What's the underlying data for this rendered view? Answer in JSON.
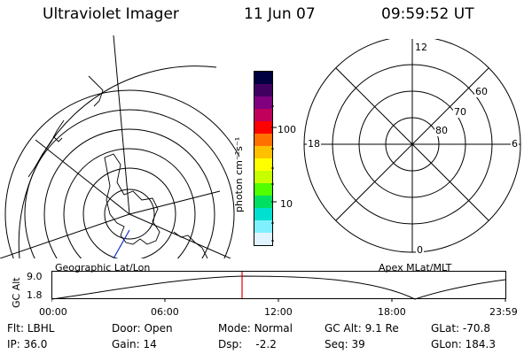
{
  "header": {
    "title": "Ultraviolet Imager",
    "date": "11 Jun 07",
    "time": "09:59:52 UT"
  },
  "left_map": {
    "label": "Geographic Lat/Lon"
  },
  "colorbar": {
    "unit_label": "photon cm⁻²s⁻¹",
    "tick_labels": [
      "100",
      "10"
    ],
    "colors": [
      "#000040",
      "#400060",
      "#800080",
      "#c0005a",
      "#ff0000",
      "#ff7000",
      "#ffc000",
      "#ffff00",
      "#c8ff00",
      "#50ff00",
      "#00e060",
      "#00e0d0",
      "#80f0ff",
      "#e0f4ff"
    ]
  },
  "right_dial": {
    "label": "Apex MLat/MLT",
    "mlt_labels": [
      "12",
      "18",
      "6",
      "0"
    ],
    "mlat_labels": [
      "60",
      "70",
      "80"
    ]
  },
  "altitude_strip": {
    "axis_label": "GC Alt",
    "y_ticks": [
      "9.0",
      "1.8"
    ],
    "x_ticks": [
      "00:00",
      "06:00",
      "12:00",
      "18:00",
      "23:59"
    ],
    "current_marker_color": "#e00000"
  },
  "status": {
    "row1": [
      {
        "label": "Flt:",
        "value": "LBHL"
      },
      {
        "label": "Door:",
        "value": "Open"
      },
      {
        "label": "Mode:",
        "value": "Normal"
      },
      {
        "label": "GC Alt:",
        "value": "9.1 Re"
      },
      {
        "label": "GLat:",
        "value": "-70.8"
      }
    ],
    "row2": [
      {
        "label": "IP:",
        "value": "36.0"
      },
      {
        "label": "Gain:",
        "value": "14"
      },
      {
        "label": "Dsp:",
        "value": "-2.2"
      },
      {
        "label": "Seq:",
        "value": "39"
      },
      {
        "label": "GLon:",
        "value": "184.3"
      }
    ]
  }
}
